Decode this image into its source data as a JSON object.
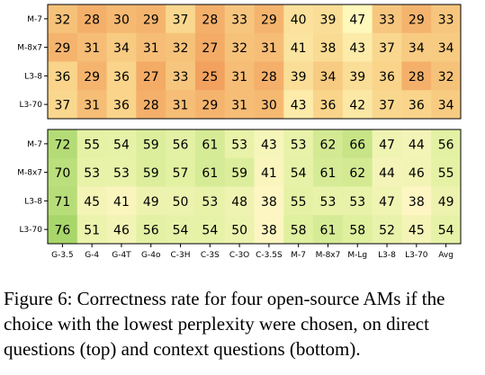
{
  "chart_data": [
    {
      "type": "heatmap",
      "panel": "direct questions",
      "rows": [
        "M-7",
        "M-8x7",
        "L3-8",
        "L3-70"
      ],
      "columns": [
        "G-3.5",
        "G-4",
        "G-4T",
        "G-4o",
        "C-3H",
        "C-3S",
        "C-3O",
        "C-3.5S",
        "M-7",
        "M-8x7",
        "M-Lg",
        "L3-8",
        "L3-70",
        "Avg"
      ],
      "values": [
        [
          32,
          28,
          30,
          29,
          37,
          28,
          33,
          29,
          40,
          39,
          47,
          33,
          29,
          33
        ],
        [
          29,
          31,
          34,
          31,
          32,
          27,
          32,
          31,
          41,
          38,
          43,
          37,
          34,
          34
        ],
        [
          36,
          29,
          36,
          27,
          33,
          25,
          31,
          28,
          39,
          34,
          39,
          36,
          28,
          32
        ],
        [
          37,
          31,
          36,
          28,
          31,
          29,
          31,
          30,
          43,
          36,
          42,
          37,
          36,
          34
        ]
      ],
      "colormap": {
        "low": "#f2a25e",
        "mid": "#f9d48a",
        "high": "#fef8bb"
      }
    },
    {
      "type": "heatmap",
      "panel": "context questions",
      "rows": [
        "M-7",
        "M-8x7",
        "L3-8",
        "L3-70"
      ],
      "columns": [
        "G-3.5",
        "G-4",
        "G-4T",
        "G-4o",
        "C-3H",
        "C-3S",
        "C-3O",
        "C-3.5S",
        "M-7",
        "M-8x7",
        "M-Lg",
        "L3-8",
        "L3-70",
        "Avg"
      ],
      "values": [
        [
          72,
          55,
          54,
          59,
          56,
          61,
          53,
          43,
          53,
          62,
          66,
          47,
          44,
          56
        ],
        [
          70,
          53,
          53,
          59,
          57,
          61,
          59,
          41,
          54,
          61,
          62,
          44,
          46,
          55
        ],
        [
          71,
          45,
          41,
          49,
          50,
          53,
          48,
          38,
          55,
          53,
          53,
          47,
          38,
          49
        ],
        [
          76,
          51,
          46,
          56,
          54,
          54,
          50,
          38,
          58,
          61,
          58,
          52,
          45,
          54
        ]
      ],
      "colormap": {
        "low": "#fdf6c2",
        "mid": "#e2f1a2",
        "high": "#a8d66a"
      }
    }
  ],
  "caption": "Figure 6: Correctness rate for four open-source AMs if the choice with the lowest perplexity were chosen, on direct questions (top) and context questions (bottom)."
}
